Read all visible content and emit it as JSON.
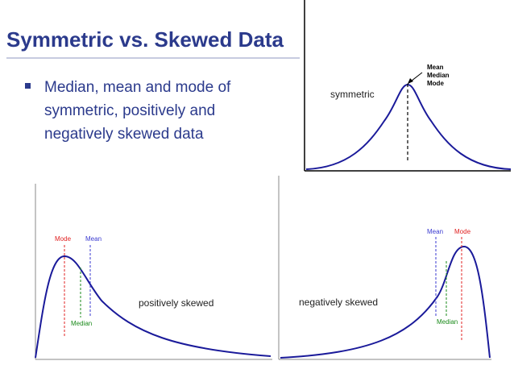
{
  "slide": {
    "title": "Symmetric vs. Skewed Data",
    "bullet": "Median, mean and mode of symmetric, positively and negatively skewed data"
  },
  "symmetric": {
    "label": "symmetric",
    "mean": "Mean",
    "median": "Median",
    "mode": "Mode"
  },
  "positive": {
    "label": "positively skewed",
    "mode": "Mode",
    "mean": "Mean",
    "median": "Median",
    "colors": {
      "mode": "#e02020",
      "median": "#1a8a1a",
      "mean": "#3a3ad0"
    }
  },
  "negative": {
    "label": "negatively skewed",
    "mean": "Mean",
    "mode": "Mode",
    "median": "Median",
    "colors": {
      "mode": "#e02020",
      "median": "#1a8a1a",
      "mean": "#3a3ad0"
    }
  }
}
